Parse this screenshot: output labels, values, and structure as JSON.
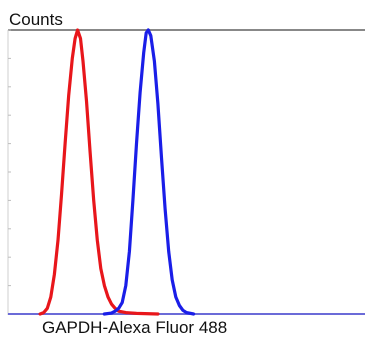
{
  "chart_data": {
    "type": "line",
    "title": "",
    "ylabel": "Counts",
    "xlabel": "GAPDH-Alexa Fluor 488",
    "xlim": [
      0,
      100
    ],
    "ylim": [
      0,
      100
    ],
    "grid": false,
    "legend": "none",
    "series": [
      {
        "color": "#e8161b",
        "points": [
          [
            9,
            0
          ],
          [
            10,
            0.5
          ],
          [
            11,
            2
          ],
          [
            12,
            6
          ],
          [
            13,
            14
          ],
          [
            14,
            26
          ],
          [
            15,
            42
          ],
          [
            16,
            60
          ],
          [
            17,
            77
          ],
          [
            18,
            90
          ],
          [
            18.8,
            97
          ],
          [
            19.5,
            100
          ],
          [
            20.3,
            97
          ],
          [
            21,
            89
          ],
          [
            22,
            75
          ],
          [
            23,
            57
          ],
          [
            24,
            40
          ],
          [
            25,
            26
          ],
          [
            26,
            16
          ],
          [
            27,
            10
          ],
          [
            28,
            6
          ],
          [
            29,
            3.5
          ],
          [
            30,
            2
          ],
          [
            31,
            1
          ],
          [
            33,
            0.5
          ],
          [
            36,
            0.2
          ],
          [
            42,
            0
          ]
        ]
      },
      {
        "color": "#1a1ee8",
        "points": [
          [
            27,
            0
          ],
          [
            29,
            0.3
          ],
          [
            30,
            1
          ],
          [
            31,
            2
          ],
          [
            32,
            4
          ],
          [
            33,
            10
          ],
          [
            34,
            22
          ],
          [
            35,
            40
          ],
          [
            36,
            60
          ],
          [
            37,
            78
          ],
          [
            38,
            92
          ],
          [
            38.7,
            99
          ],
          [
            39.3,
            100
          ],
          [
            40,
            98
          ],
          [
            41,
            89
          ],
          [
            42,
            74
          ],
          [
            43,
            55
          ],
          [
            44,
            37
          ],
          [
            45,
            22
          ],
          [
            46,
            12
          ],
          [
            47,
            6
          ],
          [
            48,
            3
          ],
          [
            49,
            1.3
          ],
          [
            50,
            0.5
          ],
          [
            52,
            0
          ]
        ]
      }
    ]
  },
  "colors": {
    "frame": "#888888",
    "baseline": "#6b6bd8"
  }
}
